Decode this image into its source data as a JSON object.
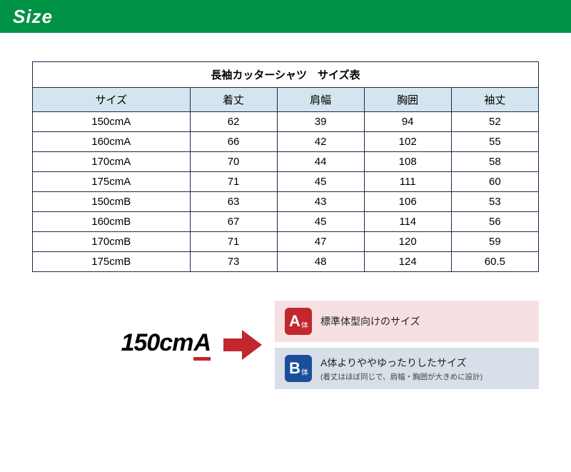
{
  "header": {
    "title": "Size"
  },
  "table": {
    "title": "長袖カッターシャツ　サイズ表",
    "columns": [
      "サイズ",
      "着丈",
      "肩幅",
      "胸囲",
      "袖丈"
    ],
    "rows": [
      [
        "150cmA",
        "62",
        "39",
        "94",
        "52"
      ],
      [
        "160cmA",
        "66",
        "42",
        "102",
        "55"
      ],
      [
        "170cmA",
        "70",
        "44",
        "108",
        "58"
      ],
      [
        "175cmA",
        "71",
        "45",
        "111",
        "60"
      ],
      [
        "150cmB",
        "63",
        "43",
        "106",
        "53"
      ],
      [
        "160cmB",
        "67",
        "45",
        "114",
        "56"
      ],
      [
        "170cmB",
        "71",
        "47",
        "120",
        "59"
      ],
      [
        "175cmB",
        "73",
        "48",
        "124",
        "60.5"
      ]
    ],
    "header_bg": "#d4e5f0",
    "border_color": "#1a2a4a"
  },
  "legend": {
    "size_prefix": "150cm",
    "size_suffix": "A",
    "underline_color": "#c1272d",
    "arrow_color": "#c1272d",
    "typeA": {
      "badge_letter": "A",
      "badge_suffix": "体",
      "badge_bg": "#c1272d",
      "box_bg": "#f7e0e2",
      "text": "標準体型向けのサイズ"
    },
    "typeB": {
      "badge_letter": "B",
      "badge_suffix": "体",
      "badge_bg": "#1b4f9c",
      "box_bg": "#d8dfe8",
      "text": "A体よりややゆったりしたサイズ",
      "subtext": "(着丈はほぼ同じで、肩幅・胸囲が大きめに設計)"
    }
  }
}
